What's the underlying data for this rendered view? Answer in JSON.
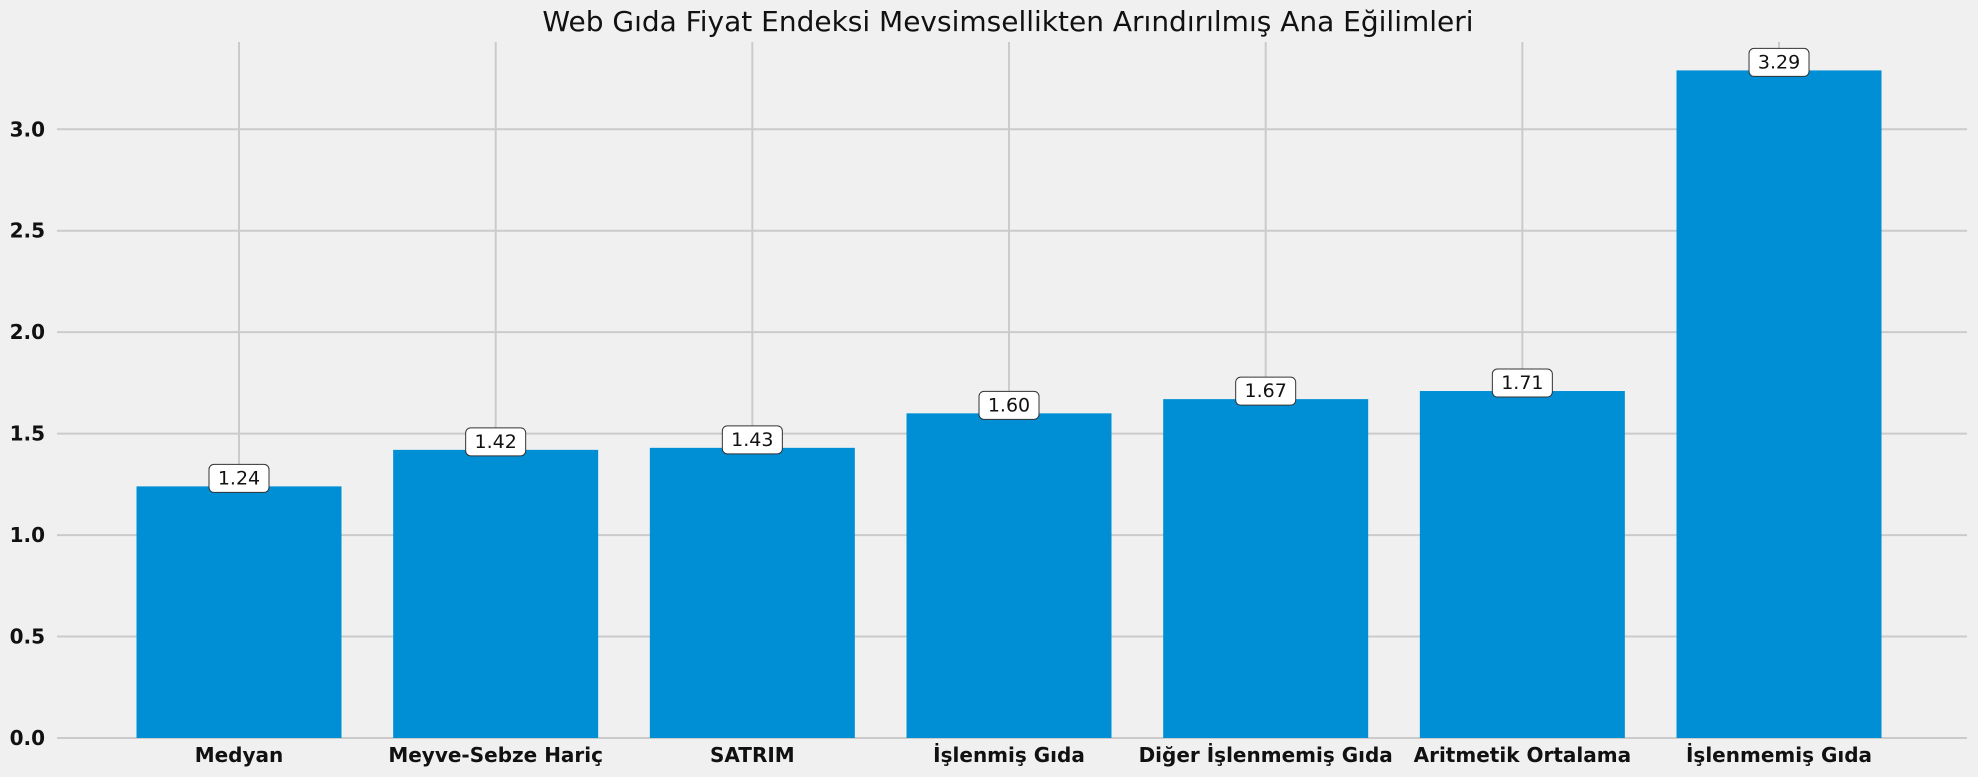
{
  "chart_data": {
    "type": "bar",
    "title": "Web Gıda Fiyat Endeksi Mevsimsellikten Arındırılmış Ana Eğilimleri",
    "xlabel": "",
    "ylabel": "",
    "categories": [
      "Medyan",
      "Meyve-Sebze Hariç",
      "SATRIM",
      "İşlenmiş Gıda",
      "Diğer İşlenmemiş Gıda",
      "Aritmetik Ortalama",
      "İşlenmemiş Gıda"
    ],
    "values": [
      1.24,
      1.42,
      1.43,
      1.6,
      1.67,
      1.71,
      3.29
    ],
    "value_labels": [
      "1.24",
      "1.42",
      "1.43",
      "1.60",
      "1.67",
      "1.71",
      "3.29"
    ],
    "ylim": [
      0,
      3.43
    ],
    "yticks": [
      0.0,
      0.5,
      1.0,
      1.5,
      2.0,
      2.5,
      3.0
    ],
    "ytick_labels": [
      "0.0",
      "0.5",
      "1.0",
      "1.5",
      "2.0",
      "2.5",
      "3.0"
    ],
    "grid": true,
    "bar_color": "#008fd5",
    "background_color": "#f0f0f0",
    "grid_color": "#cbcbcb"
  }
}
